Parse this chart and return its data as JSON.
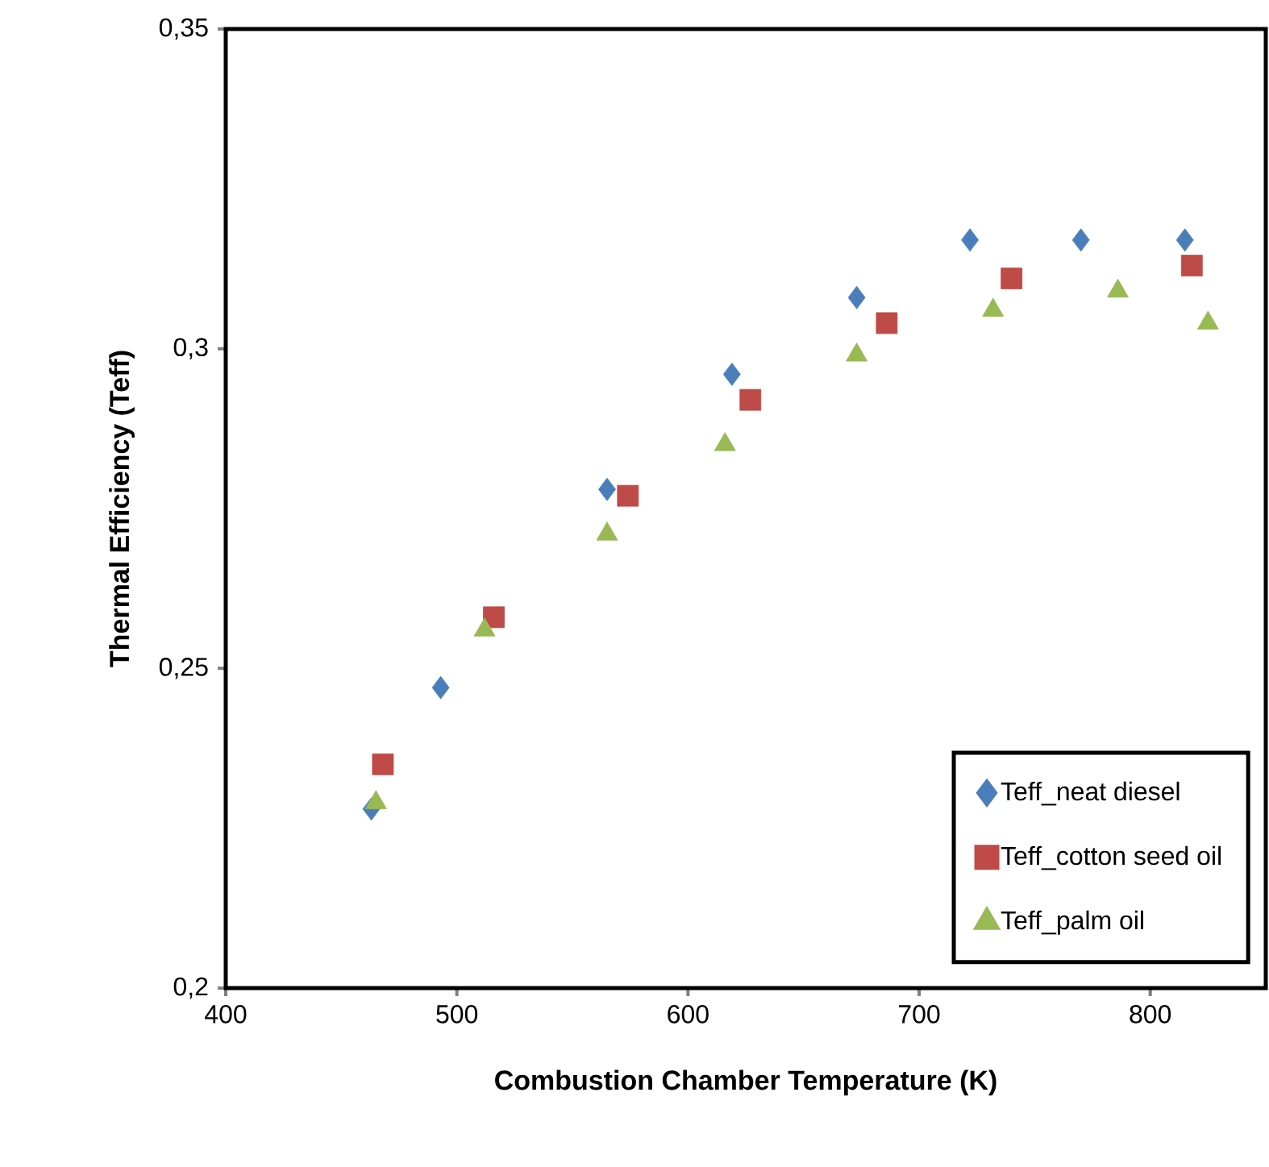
{
  "chart_data": {
    "type": "scatter",
    "xlabel": "Combustion Chamber Temperature (K)",
    "ylabel": "Thermal Efficiency  (Teff)",
    "xlim": [
      400,
      850
    ],
    "xticks": [
      400,
      500,
      600,
      700,
      800
    ],
    "ylim": [
      0.2,
      0.35
    ],
    "yticks": [
      {
        "value": 0.2,
        "label": "0,2"
      },
      {
        "value": 0.25,
        "label": "0,25"
      },
      {
        "value": 0.3,
        "label": "0,3"
      },
      {
        "value": 0.35,
        "label": "0,35"
      }
    ],
    "grid": false,
    "legend": "bottom right",
    "series": [
      {
        "name": "Teff_neat diesel",
        "color": "#4a7ebb",
        "marker": "diamond",
        "x": [
          463,
          493,
          565,
          619,
          673,
          722,
          770,
          815
        ],
        "values": [
          0.228,
          0.247,
          0.278,
          0.296,
          0.308,
          0.317,
          0.317,
          0.317
        ]
      },
      {
        "name": "Teff_cotton seed oil",
        "color": "#be4b48",
        "marker": "square",
        "x": [
          468,
          516,
          574,
          627,
          686,
          740,
          818
        ],
        "values": [
          0.235,
          0.258,
          0.277,
          0.292,
          0.304,
          0.311,
          0.313
        ]
      },
      {
        "name": "Teff_palm oil",
        "color": "#98b954",
        "marker": "triangle",
        "x": [
          465,
          512,
          565,
          616,
          673,
          732,
          786,
          825
        ],
        "values": [
          0.229,
          0.256,
          0.271,
          0.285,
          0.299,
          0.306,
          0.309,
          0.304
        ]
      }
    ]
  }
}
